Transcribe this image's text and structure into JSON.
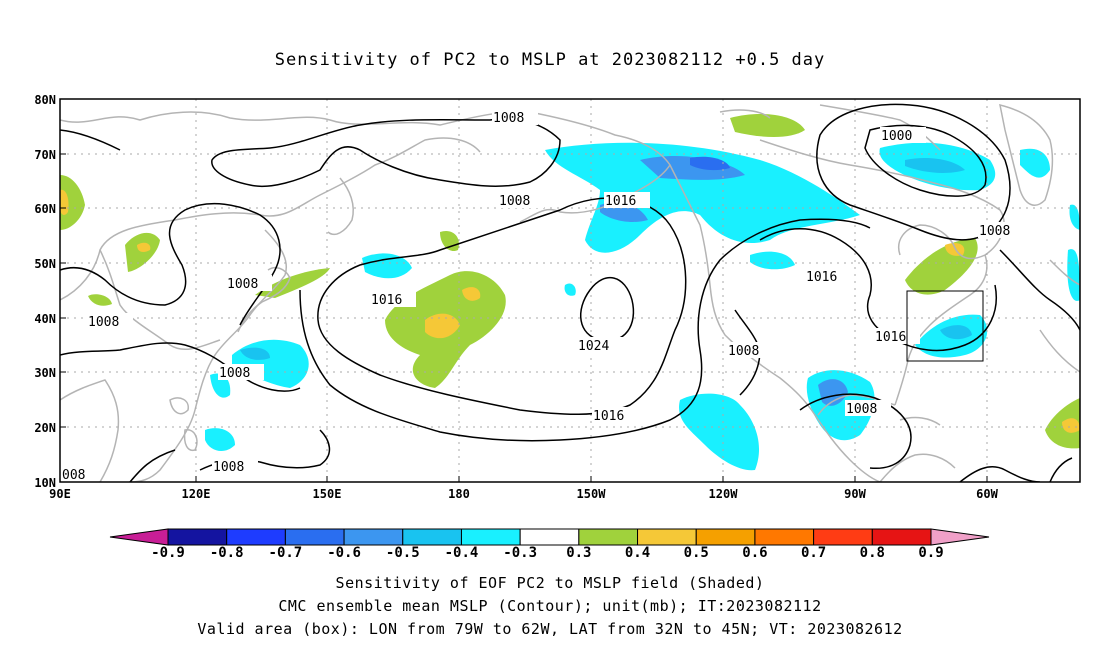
{
  "title": "Sensitivity of PC2 to MSLP at 2023082112 +0.5 day",
  "map": {
    "lat_labels": [
      "80N",
      "70N",
      "60N",
      "50N",
      "40N",
      "30N",
      "20N",
      "10N"
    ],
    "lon_labels": [
      "90E",
      "120E",
      "150E",
      "180",
      "150W",
      "120W",
      "90W",
      "60W"
    ],
    "valid_box": {
      "lon_from": -79,
      "lon_to": -62,
      "lat_from": 32,
      "lat_to": 45
    }
  },
  "contour_labels": [
    "1008",
    "1008",
    "1016",
    "1000",
    "1008",
    "1008",
    "1008",
    "1016",
    "1016",
    "1024",
    "1008",
    "1008",
    "1016",
    "1008",
    "1016",
    "1008",
    "008"
  ],
  "colorbar": {
    "labels": [
      "-0.9",
      "-0.8",
      "-0.7",
      "-0.6",
      "-0.5",
      "-0.4",
      "-0.3",
      "0.3",
      "0.4",
      "0.5",
      "0.6",
      "0.7",
      "0.8",
      "0.9"
    ],
    "colors": [
      "#1414a0",
      "#1e3cff",
      "#2a6ef0",
      "#3c96f0",
      "#19c3f0",
      "#19f0ff",
      "#ffffff",
      "#a0d23c",
      "#f5c837",
      "#f5a000",
      "#ff7800",
      "#ff3c14",
      "#e61414"
    ],
    "low_end_color": "#c81e96",
    "high_end_color": "#f0a0c8"
  },
  "footer": {
    "line1": "Sensitivity of EOF PC2 to MSLP field (Shaded)",
    "line2": "CMC ensemble mean MSLP (Contour); unit(mb); IT:2023082112",
    "line3": "Valid area (box): LON from 79W to 62W, LAT from 32N to 45N; VT: 2023082612"
  },
  "colors": {
    "land": "#b4b4b4",
    "contour": "#000000",
    "grid": "#aaaaaa"
  }
}
